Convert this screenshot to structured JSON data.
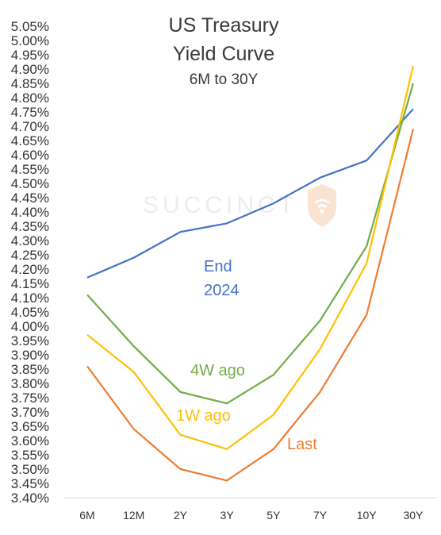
{
  "chart_data": {
    "type": "line",
    "title_lines": [
      "US Treasury",
      "Yield Curve"
    ],
    "subtitle": "6M to 30Y",
    "watermark": "SUCCINCT",
    "categories": [
      "6M",
      "12M",
      "2Y",
      "3Y",
      "5Y",
      "7Y",
      "10Y",
      "30Y"
    ],
    "ylim": [
      3.4,
      5.05
    ],
    "ytick_step": 0.05,
    "ytick_labels": [
      "3.40%",
      "3.45%",
      "3.50%",
      "3.55%",
      "3.60%",
      "3.65%",
      "3.70%",
      "3.75%",
      "3.80%",
      "3.85%",
      "3.90%",
      "3.95%",
      "4.00%",
      "4.05%",
      "4.10%",
      "4.15%",
      "4.20%",
      "4.25%",
      "4.30%",
      "4.35%",
      "4.40%",
      "4.45%",
      "4.50%",
      "4.55%",
      "4.60%",
      "4.65%",
      "4.70%",
      "4.75%",
      "4.80%",
      "4.85%",
      "4.90%",
      "4.95%",
      "5.00%",
      "5.05%"
    ],
    "grid": false,
    "series": [
      {
        "key": "end2024",
        "label_lines": [
          "End",
          "2024"
        ],
        "color": "#4472C4",
        "values": [
          4.17,
          4.24,
          4.33,
          4.36,
          4.43,
          4.52,
          4.58,
          4.76
        ]
      },
      {
        "key": "w4",
        "label_lines": [
          "4W ago"
        ],
        "color": "#70AD47",
        "values": [
          4.11,
          3.93,
          3.77,
          3.73,
          3.83,
          4.02,
          4.28,
          4.85
        ]
      },
      {
        "key": "w1",
        "label_lines": [
          "1W ago"
        ],
        "color": "#FFC000",
        "values": [
          3.97,
          3.84,
          3.62,
          3.57,
          3.69,
          3.92,
          4.22,
          4.91
        ]
      },
      {
        "key": "last",
        "label_lines": [
          "Last"
        ],
        "color": "#ED7D31",
        "values": [
          3.86,
          3.64,
          3.5,
          3.46,
          3.57,
          3.77,
          4.04,
          4.69
        ]
      }
    ]
  }
}
